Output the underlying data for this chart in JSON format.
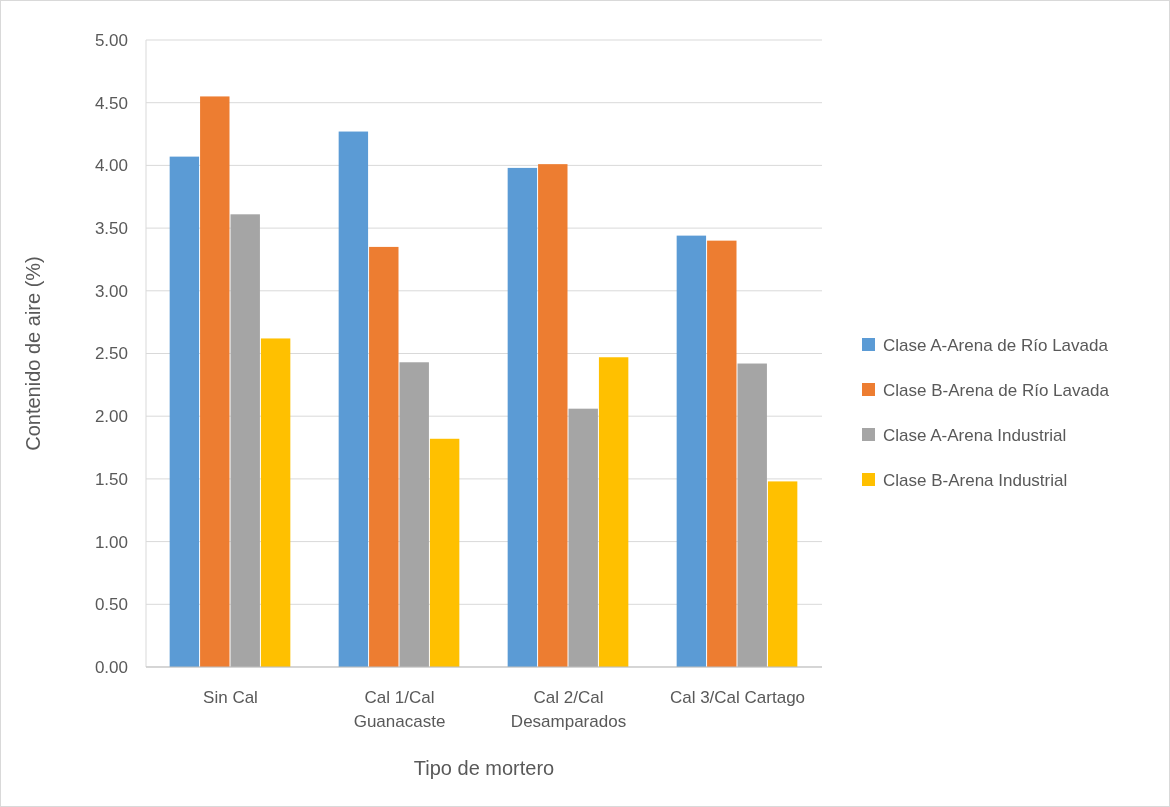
{
  "chart_data": {
    "type": "bar",
    "xlabel": "Tipo de mortero",
    "ylabel": "Contenido de aire (%)",
    "categories": [
      "Sin Cal",
      "Cal 1/Cal Guanacaste",
      "Cal 2/Cal Desamparados",
      "Cal 3/Cal Cartago"
    ],
    "series": [
      {
        "name": "Clase A-Arena de Río Lavada",
        "color": "#5b9bd5",
        "values": [
          4.07,
          4.27,
          3.98,
          3.44
        ]
      },
      {
        "name": "Clase B-Arena de Río Lavada",
        "color": "#ed7d31",
        "values": [
          4.55,
          3.35,
          4.01,
          3.4
        ]
      },
      {
        "name": "Clase A-Arena Industrial",
        "color": "#a5a5a5",
        "values": [
          3.61,
          2.43,
          2.06,
          2.42
        ]
      },
      {
        "name": "Clase B-Arena Industrial",
        "color": "#ffc000",
        "values": [
          2.62,
          1.82,
          2.47,
          1.48
        ]
      }
    ],
    "ylim": [
      0,
      5
    ],
    "yticks": [
      {
        "value": 0,
        "label": "0.00"
      },
      {
        "value": 0.5,
        "label": "0.50"
      },
      {
        "value": 1,
        "label": "1.00"
      },
      {
        "value": 1.5,
        "label": "1.50"
      },
      {
        "value": 2,
        "label": "2.00"
      },
      {
        "value": 2.5,
        "label": "2.50"
      },
      {
        "value": 3,
        "label": "3.00"
      },
      {
        "value": 3.5,
        "label": "3.50"
      },
      {
        "value": 4,
        "label": "4.00"
      },
      {
        "value": 4.5,
        "label": "4.50"
      },
      {
        "value": 5,
        "label": "5.00"
      }
    ],
    "grid": "y",
    "legend": "right"
  }
}
